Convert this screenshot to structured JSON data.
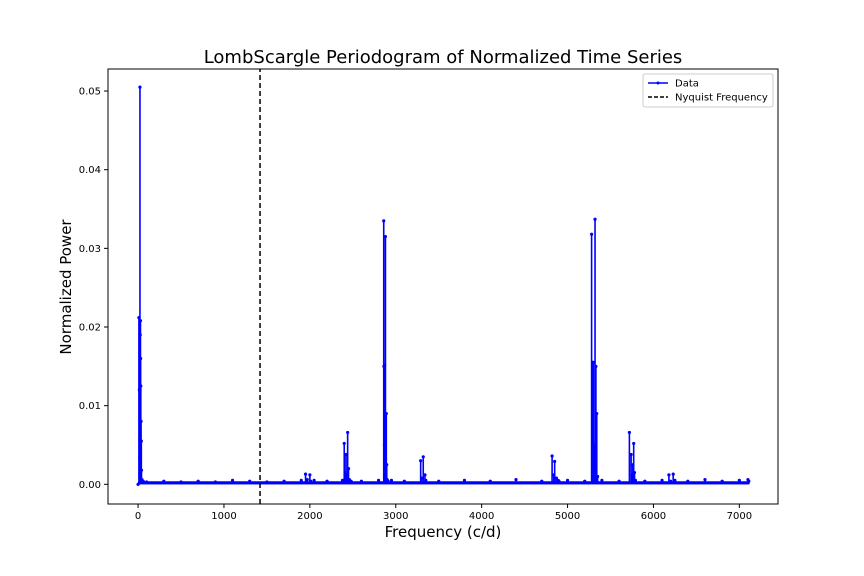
{
  "chart_data": {
    "type": "line",
    "title": "LombScargle Periodogram of Normalized Time Series",
    "xlabel": "Frequency (c/d)",
    "ylabel": "Normalized Power",
    "xlim": [
      -350,
      7450
    ],
    "ylim": [
      -0.0025,
      0.0528
    ],
    "xticks": [
      0,
      1000,
      2000,
      3000,
      4000,
      5000,
      6000,
      7000
    ],
    "xtick_labels": [
      "0",
      "1000",
      "2000",
      "3000",
      "4000",
      "5000",
      "6000",
      "7000"
    ],
    "yticks": [
      0.0,
      0.01,
      0.02,
      0.03,
      0.04,
      0.05
    ],
    "ytick_labels": [
      "0.00",
      "0.01",
      "0.02",
      "0.03",
      "0.04",
      "0.05"
    ],
    "grid": false,
    "legend_position": "top-right",
    "series": [
      {
        "name": "Data",
        "color": "#0000ff",
        "style": "solid line with small dot markers",
        "x": [
          0,
          10,
          15,
          20,
          22,
          25,
          28,
          30,
          32,
          35,
          38,
          40,
          45,
          60,
          100,
          300,
          500,
          700,
          900,
          1100,
          1300,
          1500,
          1700,
          1900,
          1950,
          1970,
          2000,
          2010,
          2050,
          2200,
          2380,
          2400,
          2410,
          2420,
          2430,
          2440,
          2450,
          2460,
          2480,
          2600,
          2800,
          2860,
          2862,
          2868,
          2870,
          2875,
          2880,
          2890,
          2895,
          2900,
          2910,
          2950,
          3100,
          3290,
          3300,
          3320,
          3340,
          3350,
          3500,
          3800,
          4100,
          4400,
          4700,
          4820,
          4840,
          4850,
          4870,
          4890,
          4900,
          5000,
          5200,
          5280,
          5290,
          5295,
          5300,
          5310,
          5320,
          5330,
          5340,
          5350,
          5400,
          5600,
          5720,
          5740,
          5750,
          5760,
          5770,
          5780,
          5790,
          5900,
          6100,
          6180,
          6200,
          6230,
          6250,
          6400,
          6600,
          6800,
          7000,
          7100,
          7110
        ],
        "y": [
          0.0,
          0.0212,
          0.012,
          0.0035,
          0.0505,
          0.019,
          0.0208,
          0.016,
          0.0125,
          0.008,
          0.0055,
          0.0018,
          0.0006,
          0.0004,
          0.0003,
          0.0004,
          0.0003,
          0.0004,
          0.0003,
          0.0005,
          0.0004,
          0.0003,
          0.0004,
          0.0005,
          0.0013,
          0.0006,
          0.0012,
          0.0004,
          0.0005,
          0.0004,
          0.0005,
          0.0052,
          0.0015,
          0.0038,
          0.0012,
          0.0066,
          0.002,
          0.0006,
          0.0004,
          0.0004,
          0.0005,
          0.0335,
          0.015,
          0.005,
          0.0152,
          0.004,
          0.0315,
          0.009,
          0.0025,
          0.0006,
          0.0004,
          0.0005,
          0.0004,
          0.003,
          0.0008,
          0.0035,
          0.0012,
          0.0005,
          0.0004,
          0.0005,
          0.0004,
          0.0006,
          0.0004,
          0.0036,
          0.0012,
          0.0029,
          0.0008,
          0.0005,
          0.0004,
          0.0005,
          0.0004,
          0.0318,
          0.0155,
          0.0052,
          0.0155,
          0.0048,
          0.0337,
          0.015,
          0.009,
          0.001,
          0.0005,
          0.0004,
          0.0066,
          0.0038,
          0.0012,
          0.0025,
          0.0052,
          0.0015,
          0.0005,
          0.0004,
          0.0005,
          0.0012,
          0.0004,
          0.0013,
          0.0005,
          0.0004,
          0.0006,
          0.0004,
          0.0005,
          0.0006,
          0.0004
        ]
      },
      {
        "name": "Nyquist Frequency",
        "color": "#000000",
        "style": "dashed",
        "x": [
          1420,
          1420
        ],
        "y": [
          -0.0025,
          0.0528
        ]
      }
    ]
  }
}
